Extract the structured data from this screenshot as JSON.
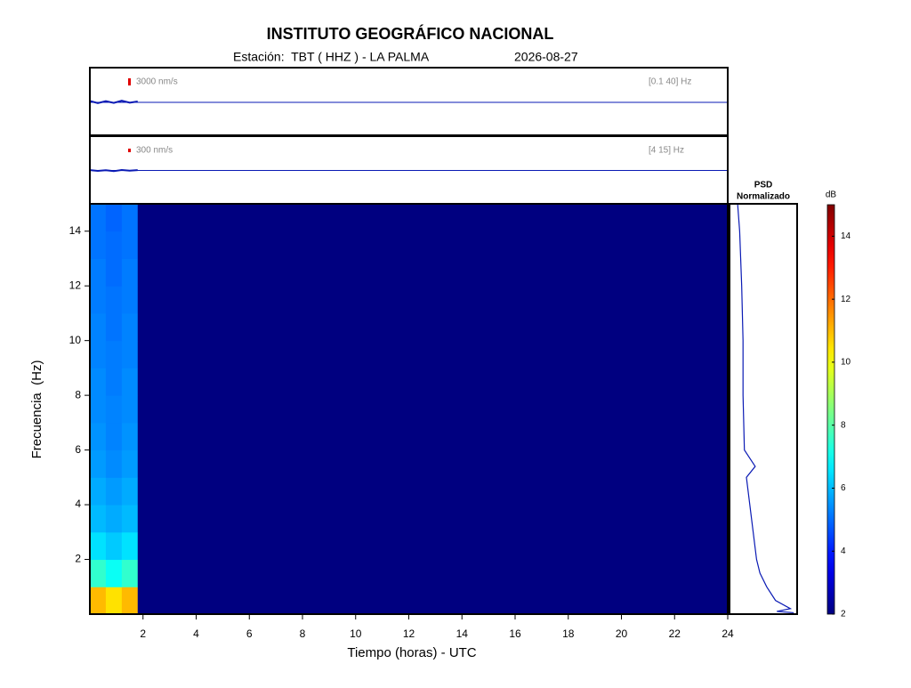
{
  "chart_data": [
    {
      "type": "trace",
      "scale": {
        "value": 3000,
        "label": "3000 nm/s"
      },
      "filter_label": "[0.1 40] Hz",
      "x": [
        0,
        0.3,
        0.6,
        0.9,
        1.2,
        1.5,
        1.8
      ],
      "values": [
        400,
        -500,
        300,
        -400,
        500,
        -300,
        200
      ],
      "xlim": [
        0,
        24
      ],
      "ylim": [
        -14000,
        14000
      ],
      "color": "#0a1ab4"
    },
    {
      "type": "trace",
      "scale": {
        "value": 300,
        "label": "300 nm/s"
      },
      "filter_label": "[4 15] Hz",
      "x": [
        0,
        0.3,
        0.6,
        0.9,
        1.2,
        1.5,
        1.8
      ],
      "values": [
        30,
        -40,
        20,
        -60,
        40,
        -20,
        30
      ],
      "xlim": [
        0,
        24
      ],
      "ylim": [
        -2800,
        2800
      ],
      "color": "#0a1ab4"
    },
    {
      "type": "heatmap",
      "title": "INSTITUTO GEOGRÁFICO NACIONAL",
      "subtitle": "Estación:  TBT ( HHZ ) - LA PALMA",
      "date": "2026-08-27",
      "x_label": "Tiempo (horas) - UTC",
      "y_label": "Frecuencia  (Hz)",
      "x_bins": [
        0,
        0.6,
        1.2,
        1.8,
        24
      ],
      "y_bins": [
        0,
        1,
        2,
        3,
        4,
        5,
        6,
        7,
        8,
        9,
        10,
        11,
        12,
        13,
        14,
        15
      ],
      "values": [
        [
          11,
          10.5,
          11,
          2
        ],
        [
          7.5,
          7,
          7.5,
          2
        ],
        [
          6.5,
          6.2,
          6.5,
          2
        ],
        [
          6,
          5.8,
          6,
          2
        ],
        [
          5.8,
          5.6,
          5.8,
          2
        ],
        [
          5.6,
          5.4,
          5.6,
          2
        ],
        [
          5.5,
          5.3,
          5.5,
          2
        ],
        [
          5.4,
          5.3,
          5.4,
          2
        ],
        [
          5.4,
          5.2,
          5.4,
          2
        ],
        [
          5.3,
          5.2,
          5.3,
          2
        ],
        [
          5.3,
          5.1,
          5.3,
          2
        ],
        [
          5.2,
          5.1,
          5.2,
          2
        ],
        [
          5.2,
          5,
          5.2,
          2
        ],
        [
          5.1,
          5,
          5.1,
          2
        ],
        [
          5.1,
          4.9,
          5.1,
          2
        ]
      ],
      "xlim": [
        0,
        24
      ],
      "ylim": [
        0,
        15
      ],
      "xticks": [
        2,
        4,
        6,
        8,
        10,
        12,
        14,
        16,
        18,
        20,
        22,
        24
      ],
      "yticks": [
        2,
        4,
        6,
        8,
        10,
        12,
        14
      ],
      "colormap": "jet",
      "colorbar": {
        "label": "dB",
        "lim": [
          2,
          15
        ],
        "ticks": [
          2,
          4,
          6,
          8,
          10,
          12,
          14
        ]
      }
    },
    {
      "type": "profile",
      "title": "PSD",
      "subtitle": "Normalizado",
      "y": [
        0.05,
        0.1,
        0.2,
        0.5,
        1,
        1.5,
        2,
        3,
        4,
        5,
        5.4,
        6,
        8,
        10,
        12,
        14,
        15
      ],
      "values": [
        0.95,
        0.7,
        0.9,
        0.68,
        0.55,
        0.45,
        0.4,
        0.35,
        0.3,
        0.25,
        0.38,
        0.22,
        0.2,
        0.2,
        0.18,
        0.15,
        0.12
      ],
      "xlim": [
        0,
        1
      ],
      "ylim": [
        0,
        15
      ],
      "color": "#0a1ab4"
    }
  ]
}
